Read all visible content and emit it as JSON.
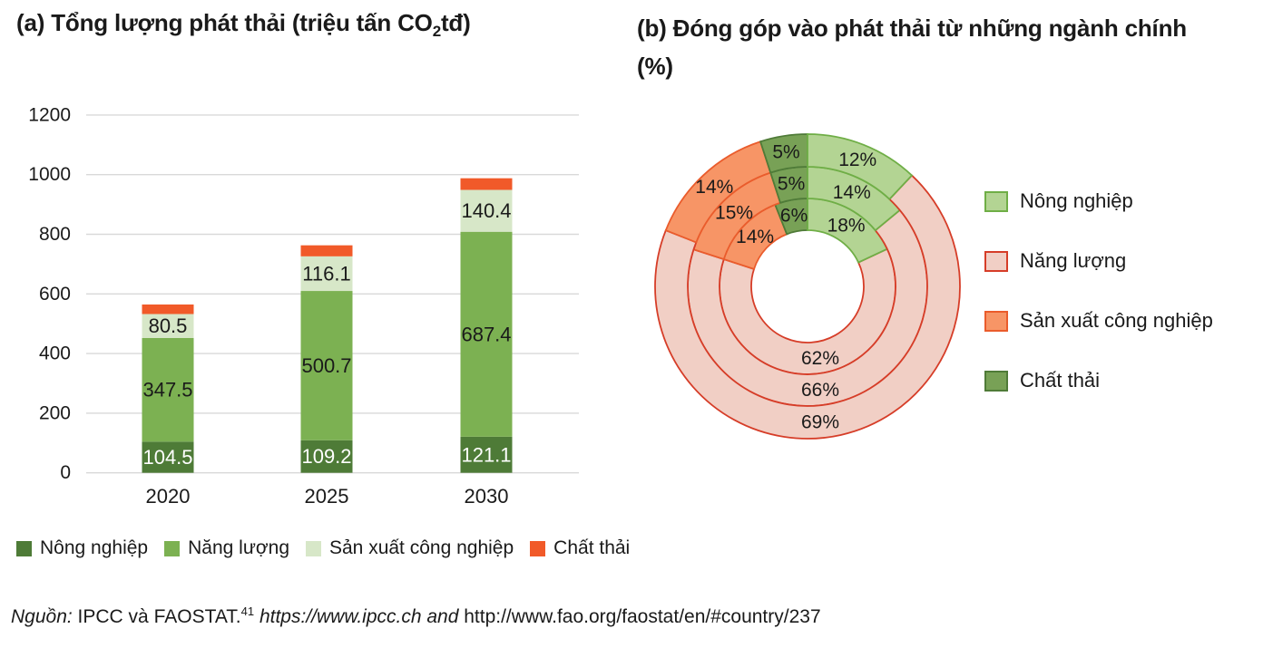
{
  "panel_a": {
    "title_prefix": "(a) Tổng lượng phát thải (triệu tấn CO",
    "title_subscript": "2",
    "title_suffix": "tđ)",
    "legend": [
      {
        "label": "Nông nghiệp",
        "color": "#4E7B37"
      },
      {
        "label": "Năng lượng",
        "color": "#7CB152"
      },
      {
        "label": "Sản xuất công nghiệp",
        "color": "#D7E7C8"
      },
      {
        "label": "Chất thải",
        "color": "#F15A29"
      }
    ]
  },
  "panel_b": {
    "title_line1": "(b) Đóng góp vào phát thải từ những ngành chính",
    "title_line2": "(%)",
    "legend": [
      {
        "label": "Nông nghiệp",
        "fill": "#B3D493",
        "border": "#6FAE46"
      },
      {
        "label": "Năng lượng",
        "fill": "#F1CFC5",
        "border": "#D63D28"
      },
      {
        "label": "Sản xuất công nghiệp",
        "fill": "#F79566",
        "border": "#EA5C2C"
      },
      {
        "label": "Chất thải",
        "fill": "#78A156",
        "border": "#4F7B38"
      }
    ]
  },
  "source": {
    "label_italic": "Nguồn:",
    "text_regular_1": " IPCC và FAOSTAT.",
    "superscript": "41",
    "text_italic": " https://www.ipcc.ch and ",
    "text_regular_2": "http://www.fao.org/faostat/en/#country/237"
  },
  "chart_data": [
    {
      "type": "bar",
      "stacked": true,
      "title": "(a) Tổng lượng phát thải (triệu tấn CO2tđ)",
      "categories": [
        "2020",
        "2025",
        "2030"
      ],
      "series": [
        {
          "name": "Nông nghiệp",
          "values": [
            104.5,
            109.2,
            121.1
          ],
          "color": "#4E7B37",
          "labels_shown": true,
          "label_color": "#FFFFFF"
        },
        {
          "name": "Năng lượng",
          "values": [
            347.5,
            500.7,
            687.4
          ],
          "color": "#7CB152",
          "labels_shown": true,
          "label_color": "#1A1A1A"
        },
        {
          "name": "Sản xuất công nghiệp",
          "values": [
            80.5,
            116.1,
            140.4
          ],
          "color": "#D7E7C8",
          "labels_shown": true,
          "label_color": "#1A1A1A"
        },
        {
          "name": "Chất thải",
          "values": [
            32,
            37,
            39
          ],
          "color": "#F15A29",
          "labels_shown": false,
          "label_color": "#1A1A1A",
          "estimated_from_gridlines": true
        }
      ],
      "ylabel": "",
      "xlabel": "",
      "ylim": [
        0,
        1200
      ],
      "yticks": [
        0,
        200,
        400,
        600,
        800,
        1000,
        1200
      ],
      "grid": true,
      "gridline_color": "#D9D9D9",
      "legend_position": "bottom"
    },
    {
      "type": "pie",
      "subtype": "nested-donut",
      "title": "(b) Đóng góp vào phát thải từ những ngành chính (%)",
      "unit": "%",
      "categories": [
        "Nông nghiệp",
        "Năng lượng",
        "Sản xuất công nghiệp",
        "Chất thải"
      ],
      "rings_inner_to_outer": [
        {
          "name": "inner",
          "values": [
            18,
            62,
            14,
            6
          ]
        },
        {
          "name": "middle",
          "values": [
            14,
            66,
            15,
            5
          ]
        },
        {
          "name": "outer",
          "values": [
            12,
            69,
            14,
            5
          ]
        }
      ],
      "start_angle_deg": 0,
      "direction": "clockwise",
      "legend_position": "right",
      "segment_styles": [
        {
          "category": "Nông nghiệp",
          "fill": "#B3D493",
          "border": "#6FAE46"
        },
        {
          "category": "Năng lượng",
          "fill": "#F1CFC5",
          "border": "#D63D28"
        },
        {
          "category": "Sản xuất công nghiệp",
          "fill": "#F79566",
          "border": "#EA5C2C"
        },
        {
          "category": "Chất thải",
          "fill": "#78A156",
          "border": "#4F7B38"
        }
      ]
    }
  ]
}
